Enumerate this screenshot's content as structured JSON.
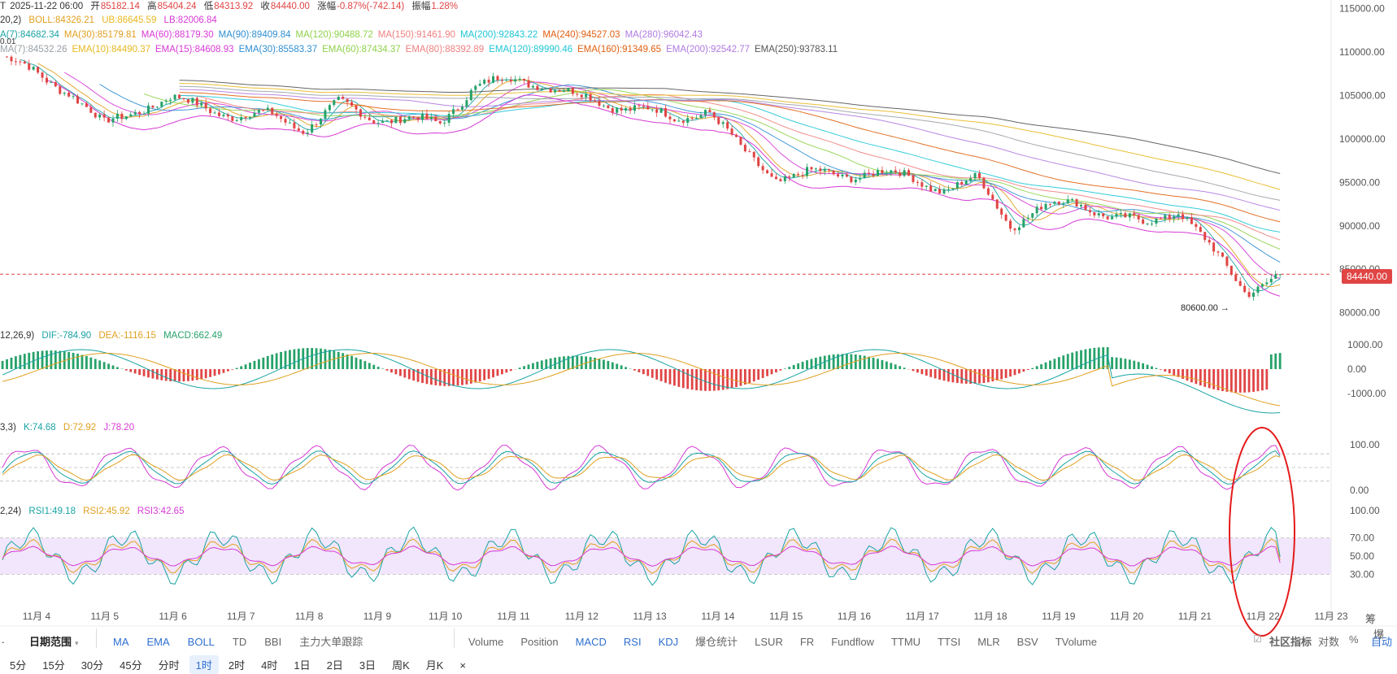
{
  "header": {
    "period_prefix": "T",
    "datetime": "2025-11-22 06:00",
    "open_label": "开",
    "open": "85182.14",
    "high_label": "高",
    "high": "85404.24",
    "low_label": "低",
    "low": "84313.92",
    "close_label": "收",
    "close": "84440.00",
    "change_label": "涨幅",
    "change": "-0.87%(-742.14)",
    "amp_label": "振幅",
    "amp": "1.28%"
  },
  "boll": {
    "prefix": "20,2)",
    "boll": "BOLL:84326.21",
    "ub": "UB:86645.59",
    "lb": "LB:82006.84"
  },
  "ma_row": [
    {
      "text": "A(7):84682.34",
      "color": "#1aa3a3"
    },
    {
      "text": "MA(30):85179.81",
      "color": "#e0a020"
    },
    {
      "text": "MA(60):88179.30",
      "color": "#d63ad6"
    },
    {
      "text": "MA(90):89409.84",
      "color": "#2f8fd1"
    },
    {
      "text": "MA(120):90488.72",
      "color": "#8fd14a"
    },
    {
      "text": "MA(150):91461.90",
      "color": "#f07f7f"
    },
    {
      "text": "MA(200):92843.22",
      "color": "#1fc6d6"
    },
    {
      "text": "MA(240):94527.03",
      "color": "#e06010"
    },
    {
      "text": "MA(280):96042.43",
      "color": "#b07ae0"
    }
  ],
  "ema_row": [
    {
      "text": "MA(7):84532.26",
      "color": "#9aa0a6"
    },
    {
      "text": "EMA(10):84490.37",
      "color": "#e8b820"
    },
    {
      "text": "EMA(15):84608.93",
      "color": "#d63ad6"
    },
    {
      "text": "EMA(30):85583.37",
      "color": "#2f8fd1"
    },
    {
      "text": "EMA(60):87434.37",
      "color": "#8fd14a"
    },
    {
      "text": "EMA(80):88392.89",
      "color": "#f07f7f"
    },
    {
      "text": "EMA(120):89990.46",
      "color": "#1fc6d6"
    },
    {
      "text": "EMA(160):91349.65",
      "color": "#e06010"
    },
    {
      "text": "EMA(200):92542.77",
      "color": "#b07ae0"
    },
    {
      "text": "EMA(250):93783.11",
      "color": "#555555"
    }
  ],
  "macd": {
    "prefix": "12,26,9)",
    "dif": "DIF:-784.90",
    "dea": "DEA:-1116.15",
    "macd": "MACD:662.49"
  },
  "kdj": {
    "prefix": "3,3)",
    "k": "K:74.68",
    "d": "D:72.92",
    "j": "J:78.20"
  },
  "rsi": {
    "prefix": "2,24)",
    "rsi1": "RSI1:49.18",
    "rsi2": "RSI2:45.92",
    "rsi3": "RSI3:42.65"
  },
  "current_price": "84440.00",
  "low_marker": "80600.00",
  "top_left_value": "0.01",
  "right_corner": {
    "label1": "筹",
    "label2": "爆"
  },
  "toolbar1": {
    "left_mark": ".",
    "range": "日期范围",
    "items_a": [
      "MA",
      "EMA",
      "BOLL",
      "TD",
      "BBI",
      "主力大单跟踪"
    ],
    "items_b": [
      "Volume",
      "Position",
      "MACD",
      "RSI",
      "KDJ",
      "爆仓统计",
      "LSUR",
      "FR",
      "Fundflow",
      "TTMU",
      "TTSI",
      "MLR",
      "BSV",
      "TVolume"
    ],
    "active_b": [
      "MACD",
      "RSI",
      "KDJ"
    ],
    "community": "社区指标",
    "log": "对数",
    "pct": "%",
    "auto": "自动"
  },
  "toolbar2": {
    "intervals": [
      "5分",
      "15分",
      "30分",
      "45分",
      "分时",
      "1时",
      "2时",
      "4时",
      "1日",
      "2日",
      "3日",
      "周K",
      "月K"
    ],
    "active": "1时",
    "close": "×"
  },
  "chart_data": {
    "type": "line",
    "title": "",
    "price_axis": {
      "ticks": [
        115000,
        110000,
        105000,
        100000,
        95000,
        90000,
        85000,
        80000
      ],
      "labels": [
        "115000.00",
        "110000.00",
        "105000.00",
        "100000.00",
        "95000.00",
        "90000.00",
        "85000.00",
        "80000.00"
      ],
      "ylim": [
        79500,
        116000
      ]
    },
    "macd_axis": {
      "ticks": [
        1000,
        0,
        -1000
      ],
      "labels": [
        "1000.00",
        "0.00",
        "-1000.00"
      ]
    },
    "kdj_axis": {
      "ticks": [
        100,
        0
      ],
      "labels": [
        "100.00",
        "0.00"
      ]
    },
    "rsi_axis": {
      "ticks": [
        100,
        70,
        50,
        30
      ],
      "labels": [
        "100.00",
        "70.00",
        "50.00",
        "30.00"
      ]
    },
    "x_labels": [
      "11月 4",
      "11月 5",
      "11月 6",
      "11月 7",
      "11月 8",
      "11月 9",
      "11月 10",
      "11月 11",
      "11月 12",
      "11月 13",
      "11月 14",
      "11月 15",
      "11月 16",
      "11月 17",
      "11月 18",
      "11月 19",
      "11月 20",
      "11月 21",
      "11月 22",
      "11月 23"
    ],
    "close_series": {
      "x": [
        "11-3 12:00",
        "11-4 00:00",
        "11-4 12:00",
        "11-5 00:00",
        "11-5 12:00",
        "11-6 00:00",
        "11-6 12:00",
        "11-7 00:00",
        "11-7 12:00",
        "11-8 00:00",
        "11-8 12:00",
        "11-9 00:00",
        "11-9 12:00",
        "11-10 00:00",
        "11-10 12:00",
        "11-11 00:00",
        "11-11 12:00",
        "11-12 00:00",
        "11-12 12:00",
        "11-13 00:00",
        "11-13 12:00",
        "11-14 00:00",
        "11-14 12:00",
        "11-15 00:00",
        "11-15 12:00",
        "11-16 00:00",
        "11-16 12:00",
        "11-17 00:00",
        "11-17 12:00",
        "11-18 00:00",
        "11-18 12:00",
        "11-19 00:00",
        "11-19 12:00",
        "11-20 00:00",
        "11-20 12:00",
        "11-21 00:00",
        "11-21 12:00",
        "11-22 00:00",
        "11-22 06:00"
      ],
      "values": [
        109500,
        107500,
        105500,
        101500,
        103500,
        104500,
        103800,
        102500,
        102800,
        101200,
        104000,
        102500,
        102200,
        101800,
        106000,
        106800,
        106500,
        105000,
        104000,
        103500,
        102200,
        103500,
        98500,
        95500,
        96000,
        95800,
        96200,
        95500,
        94200,
        95300,
        90200,
        92200,
        92800,
        91000,
        90200,
        92000,
        87000,
        82500,
        84440
      ]
    },
    "low_point": 80600,
    "macd_current": {
      "dif": -784.9,
      "dea": -1116.15,
      "macd": 662.49
    },
    "kdj_current": {
      "k": 74.68,
      "d": 72.92,
      "j": 78.2
    },
    "rsi_current": {
      "rsi1": 49.18,
      "rsi2": 45.92,
      "rsi3": 42.65
    },
    "grid": false,
    "legend": "top-left"
  }
}
